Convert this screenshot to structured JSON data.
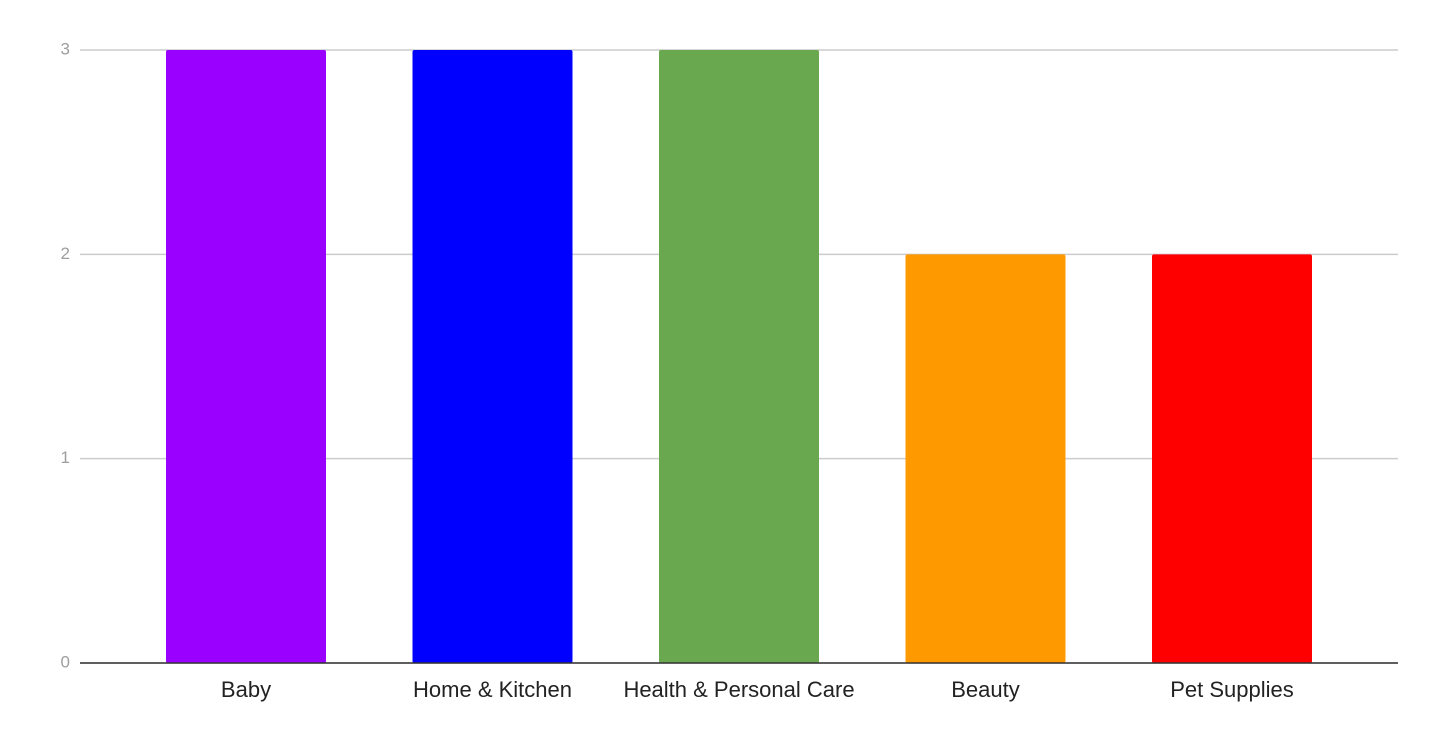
{
  "chart_data": {
    "type": "bar",
    "categories": [
      "Baby",
      "Home & Kitchen",
      "Health & Personal Care",
      "Beauty",
      "Pet Supplies"
    ],
    "values": [
      3,
      3,
      3,
      2,
      2
    ],
    "colors": [
      "#9900ff",
      "#0000ff",
      "#6aa84f",
      "#ff9900",
      "#ff0000"
    ],
    "ylim": [
      0,
      3
    ],
    "yticks": [
      0,
      1,
      2,
      3
    ],
    "grid": true
  }
}
